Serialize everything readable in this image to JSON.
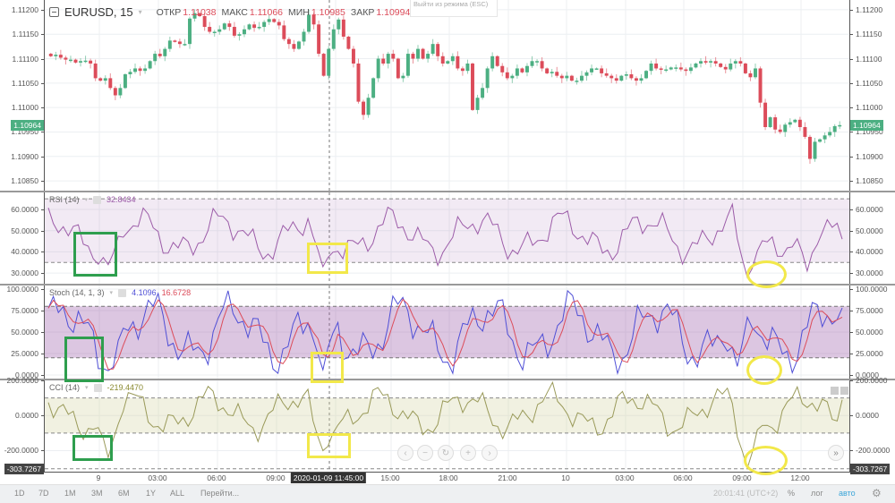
{
  "header": {
    "symbol": "EURUSD, 15",
    "open_label": "ОТКР",
    "open_value": "1.11038",
    "high_label": "МАКС",
    "high_value": "1.11066",
    "low_label": "МИН",
    "low_value": "1.10985",
    "close_label": "ЗАКР",
    "close_value": "1.10994",
    "tooltip": "Выйти из режима (ESC)"
  },
  "colors": {
    "up": "#4caf82",
    "down": "#dc4c5a",
    "rsi": "#9c5ca8",
    "stoch_k": "#4f4fd6",
    "stoch_d": "#dc4c5a",
    "cci": "#9a9a5a",
    "green_box": "#2e9e4e",
    "yellow_mark": "#f2e84a"
  },
  "price_pane": {
    "ticks": [
      "1.11200",
      "1.11150",
      "1.11100",
      "1.11050",
      "1.11000",
      "1.10950",
      "1.10900",
      "1.10850"
    ],
    "last_price": "1.10964"
  },
  "rsi_pane": {
    "label": "RSI (14)",
    "value": "32.8434",
    "ticks": [
      "60.0000",
      "50.0000",
      "40.0000",
      "30.0000"
    ]
  },
  "stoch_pane": {
    "label": "Stoch (14, 1, 3)",
    "k_value": "4.1096",
    "d_value": "16.6728",
    "ticks": [
      "100.0000",
      "75.0000",
      "50.0000",
      "25.0000",
      "0.0000"
    ]
  },
  "cci_pane": {
    "label": "CCI (14)",
    "value": "-219.4470",
    "ticks": [
      "200.0000",
      "0.0000",
      "-200.0000"
    ],
    "current": "-303.7267"
  },
  "x_axis": {
    "labels": [
      "9",
      "03:00",
      "06:00",
      "09:00",
      "15:00",
      "18:00",
      "21:00",
      "10",
      "03:00",
      "06:00",
      "09:00",
      "12:00"
    ],
    "crosshair": "2020-01-09 11:45:00"
  },
  "bottom_bar": {
    "ranges": [
      "1D",
      "7D",
      "1M",
      "3M",
      "6M",
      "1Y",
      "ALL"
    ],
    "goto": "Перейти...",
    "clock": "20:01:41 (UTC+2)",
    "percent": "%",
    "log": "лог",
    "auto": "авто"
  },
  "chart_data": {
    "type": "candlestick",
    "title": "EURUSD, 15",
    "ohlc_current": {
      "open": 1.11038,
      "high": 1.11066,
      "low": 1.10985,
      "close": 1.10994
    },
    "ylim": [
      1.1083,
      1.1122
    ],
    "x_ticks": [
      "9",
      "03:00",
      "06:00",
      "09:00",
      "12:00",
      "15:00",
      "18:00",
      "21:00",
      "10",
      "03:00",
      "06:00",
      "09:00",
      "12:00"
    ],
    "close_series": [
      1.11105,
      1.11108,
      1.11102,
      1.11098,
      1.11098,
      1.11092,
      1.11095,
      1.11096,
      1.1109,
      1.1106,
      1.11055,
      1.1106,
      1.1104,
      1.11025,
      1.1104,
      1.11068,
      1.11073,
      1.1108,
      1.11075,
      1.1108,
      1.11095,
      1.1111,
      1.11105,
      1.1112,
      1.11137,
      1.11135,
      1.1113,
      1.1113,
      1.11182,
      1.11193,
      1.11187,
      1.11165,
      1.11155,
      1.11155,
      1.1116,
      1.11172,
      1.11165,
      1.11147,
      1.1115,
      1.1116,
      1.1117,
      1.11163,
      1.11165,
      1.11175,
      1.11181,
      1.11175,
      1.11168,
      1.1114,
      1.1113,
      1.1112,
      1.11135,
      1.11155,
      1.1119,
      1.1117,
      1.1111,
      1.11065,
      1.1112,
      1.1116,
      1.1118,
      1.11145,
      1.1112,
      1.1109,
      1.11012,
      1.10985,
      1.1102,
      1.1106,
      1.111,
      1.1109,
      1.1111,
      1.111,
      1.1106,
      1.11065,
      1.1111,
      1.111,
      1.1112,
      1.111,
      1.1111,
      1.1113,
      1.11105,
      1.1109,
      1.11095,
      1.11105,
      1.1108,
      1.11075,
      1.1109,
      1.10995,
      1.1102,
      1.1104,
      1.1108,
      1.11105,
      1.11085,
      1.11072,
      1.1106,
      1.11065,
      1.1108,
      1.11072,
      1.11085,
      1.11095,
      1.11095,
      1.1108,
      1.1107,
      1.11073,
      1.11065,
      1.1106,
      1.11065,
      1.11055,
      1.11055,
      1.11065,
      1.11072,
      1.1108,
      1.1108,
      1.1107,
      1.11065,
      1.1106,
      1.11055,
      1.11065,
      1.11068,
      1.1106,
      1.11055,
      1.1106,
      1.11075,
      1.1109,
      1.1108,
      1.11078,
      1.11078,
      1.11082,
      1.11082,
      1.11078,
      1.11075,
      1.11082,
      1.1109,
      1.11095,
      1.11092,
      1.11095,
      1.1109,
      1.11083,
      1.11078,
      1.1109,
      1.11095,
      1.1109,
      1.1107,
      1.11062,
      1.1108,
      1.1101,
      1.1096,
      1.1098,
      1.10955,
      1.1095,
      1.10965,
      1.1097,
      1.10975,
      1.1096,
      1.1094,
      1.10895,
      1.1093,
      1.10935,
      1.10943,
      1.1095,
      1.10962,
      1.10964
    ],
    "indicators": {
      "rsi": {
        "period": 14,
        "value": 32.8434,
        "bands": [
          35,
          65
        ],
        "ylim": [
          25,
          68
        ]
      },
      "stoch": {
        "params": [
          14,
          1,
          3
        ],
        "k": 4.1096,
        "d": 16.6728,
        "bands": [
          20,
          80
        ],
        "ylim": [
          0,
          100
        ]
      },
      "cci": {
        "period": 14,
        "value": -219.447,
        "min_label": -303.7267,
        "bands": [
          -100,
          100
        ],
        "ylim": [
          -320,
          200
        ]
      }
    },
    "annotations": [
      {
        "shape": "rectangle",
        "color": "green",
        "pane": "rsi",
        "near_x": "9"
      },
      {
        "shape": "rectangle",
        "color": "green",
        "pane": "stoch",
        "near_x": "9"
      },
      {
        "shape": "rectangle",
        "color": "green",
        "pane": "cci",
        "near_x": "9"
      },
      {
        "shape": "rectangle",
        "color": "yellow",
        "pane": "rsi",
        "near_x": "2020-01-09 11:45"
      },
      {
        "shape": "rectangle",
        "color": "yellow",
        "pane": "stoch",
        "near_x": "2020-01-09 11:45"
      },
      {
        "shape": "rectangle",
        "color": "yellow",
        "pane": "cci",
        "near_x": "2020-01-09 11:45"
      },
      {
        "shape": "ellipse",
        "color": "yellow",
        "pane": "rsi",
        "near_x": "10 09:00"
      },
      {
        "shape": "ellipse",
        "color": "yellow",
        "pane": "stoch",
        "near_x": "10 09:00"
      },
      {
        "shape": "ellipse",
        "color": "yellow",
        "pane": "cci",
        "near_x": "10 09:00"
      }
    ]
  }
}
